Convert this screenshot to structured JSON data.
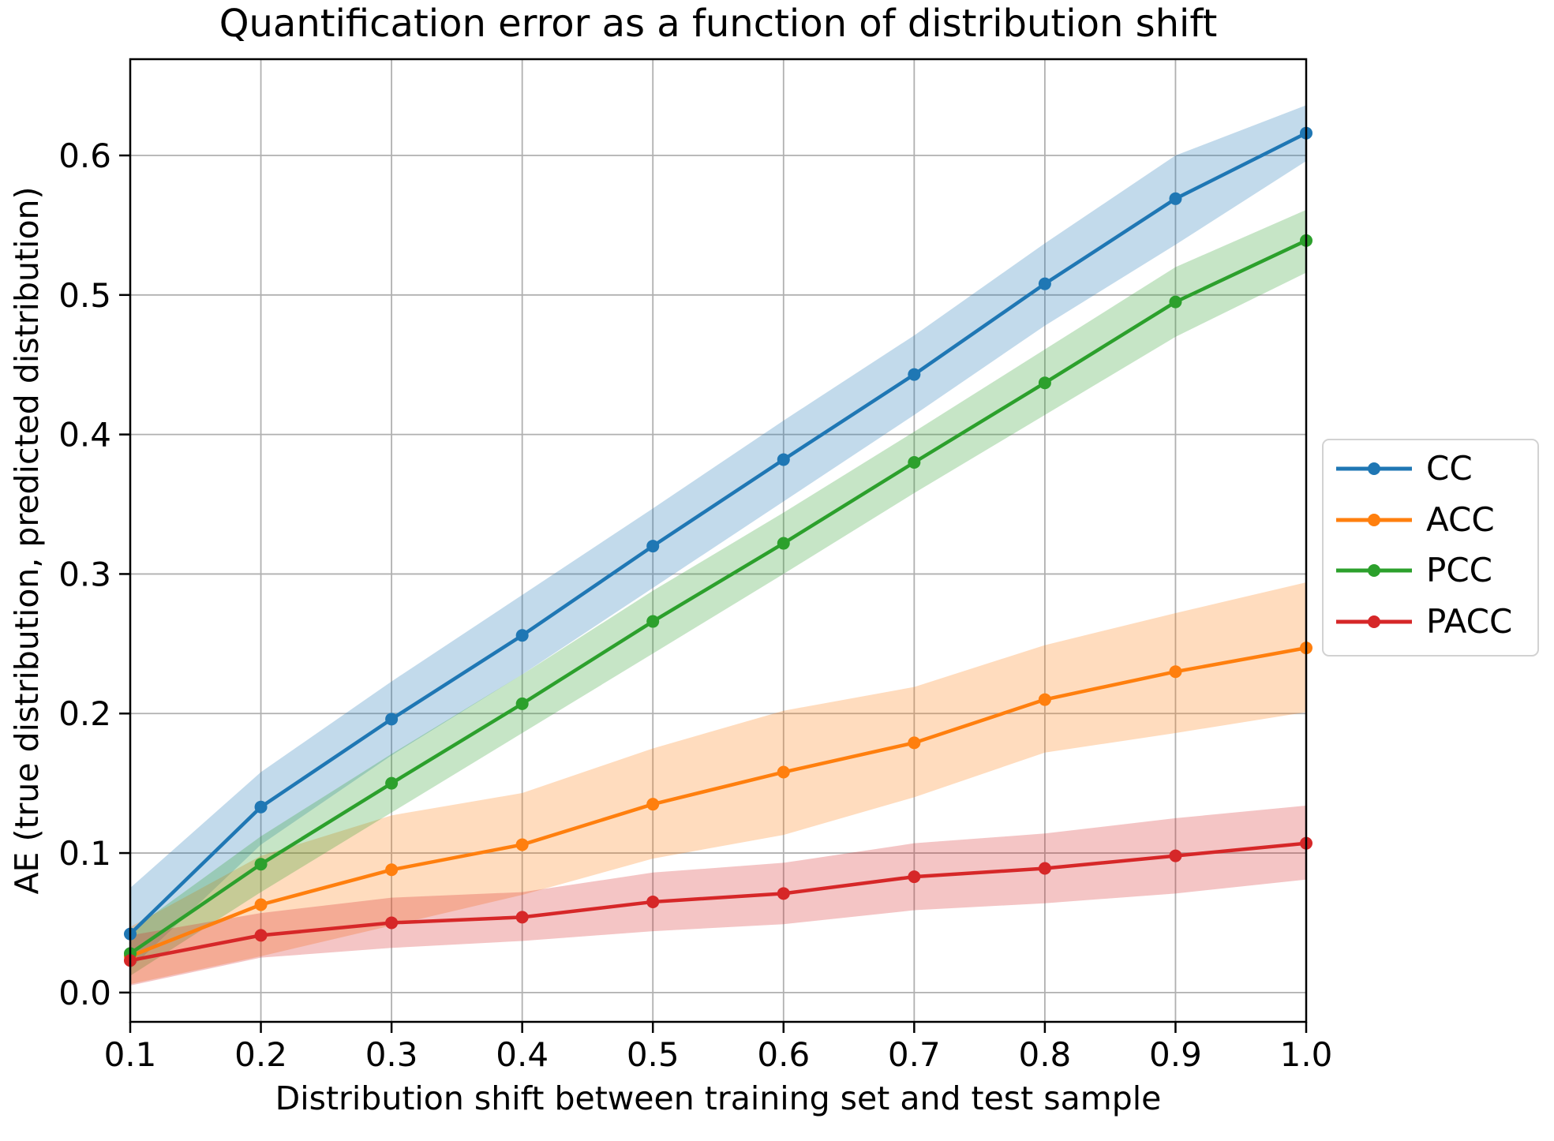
{
  "chart_data": {
    "type": "line",
    "title": "Quantification error as a function of distribution shift",
    "xlabel": "Distribution shift between training set and test sample",
    "ylabel": "AE (true distribution, predicted distribution)",
    "x": [
      0.1,
      0.2,
      0.3,
      0.4,
      0.5,
      0.6,
      0.7,
      0.8,
      0.9,
      1.0
    ],
    "xtick_labels": [
      "0.1",
      "0.2",
      "0.3",
      "0.4",
      "0.5",
      "0.6",
      "0.7",
      "0.8",
      "0.9",
      "1.0"
    ],
    "ytick_values": [
      0.0,
      0.1,
      0.2,
      0.3,
      0.4,
      0.5,
      0.6
    ],
    "ytick_labels": [
      "0.0",
      "0.1",
      "0.2",
      "0.3",
      "0.4",
      "0.5",
      "0.6"
    ],
    "xlim": [
      0.1,
      1.0
    ],
    "ylim": [
      -0.021,
      0.669
    ],
    "grid": true,
    "grid_color": "#b0b0b0",
    "axis_color": "#000000",
    "legend_position": "center-right-outside",
    "series": [
      {
        "name": "CC",
        "color": "#1f77b4",
        "marker": "circle",
        "values": [
          0.042,
          0.133,
          0.196,
          0.256,
          0.32,
          0.382,
          0.443,
          0.508,
          0.569,
          0.616
        ],
        "band_lower": [
          0.017,
          0.106,
          0.17,
          0.228,
          0.29,
          0.352,
          0.414,
          0.478,
          0.536,
          0.596
        ],
        "band_upper": [
          0.075,
          0.158,
          0.223,
          0.285,
          0.347,
          0.41,
          0.471,
          0.537,
          0.6,
          0.636
        ]
      },
      {
        "name": "ACC",
        "color": "#ff7f0e",
        "marker": "circle",
        "values": [
          0.026,
          0.063,
          0.088,
          0.106,
          0.135,
          0.158,
          0.179,
          0.21,
          0.23,
          0.247
        ],
        "band_lower": [
          0.006,
          0.026,
          0.048,
          0.07,
          0.096,
          0.113,
          0.14,
          0.172,
          0.186,
          0.201
        ],
        "band_upper": [
          0.047,
          0.098,
          0.127,
          0.143,
          0.175,
          0.202,
          0.219,
          0.249,
          0.272,
          0.294
        ]
      },
      {
        "name": "PCC",
        "color": "#2ca02c",
        "marker": "circle",
        "values": [
          0.028,
          0.092,
          0.15,
          0.207,
          0.266,
          0.322,
          0.38,
          0.437,
          0.495,
          0.539
        ],
        "band_lower": [
          0.012,
          0.072,
          0.129,
          0.186,
          0.243,
          0.3,
          0.358,
          0.414,
          0.47,
          0.516
        ],
        "band_upper": [
          0.044,
          0.112,
          0.171,
          0.228,
          0.288,
          0.344,
          0.402,
          0.461,
          0.52,
          0.561
        ]
      },
      {
        "name": "PACC",
        "color": "#d62728",
        "marker": "circle",
        "values": [
          0.023,
          0.041,
          0.05,
          0.054,
          0.065,
          0.071,
          0.083,
          0.089,
          0.098,
          0.107
        ],
        "band_lower": [
          0.005,
          0.025,
          0.032,
          0.037,
          0.044,
          0.049,
          0.059,
          0.064,
          0.071,
          0.081
        ],
        "band_upper": [
          0.041,
          0.057,
          0.068,
          0.072,
          0.086,
          0.093,
          0.107,
          0.114,
          0.125,
          0.134
        ]
      }
    ]
  }
}
